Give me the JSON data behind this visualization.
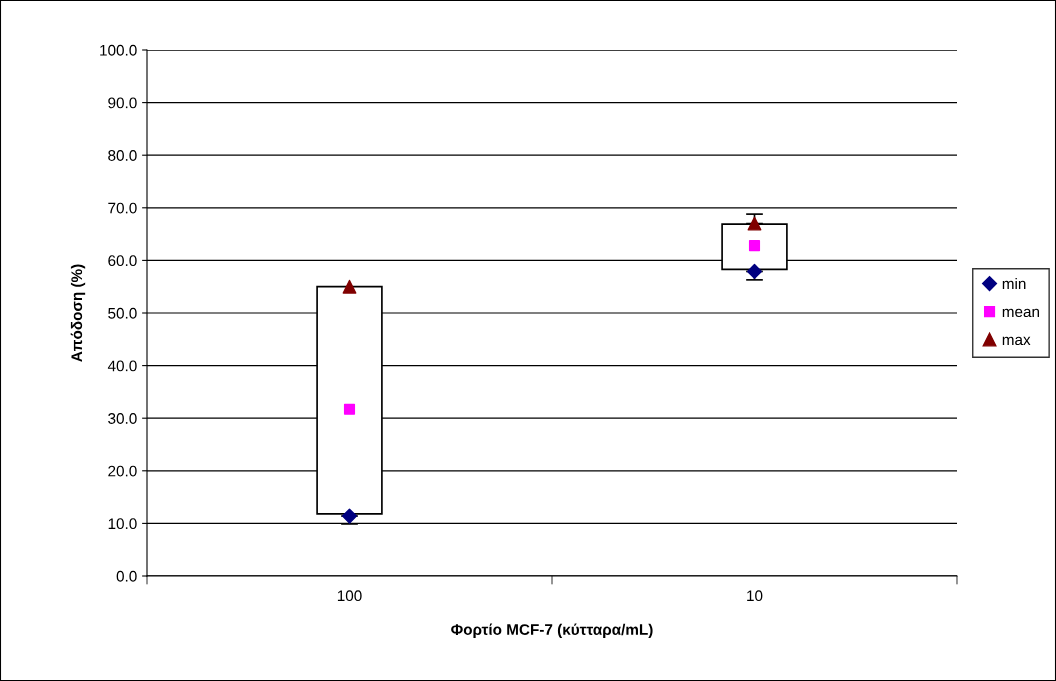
{
  "chart_data": {
    "type": "scatter",
    "xlabel": "Φορτίο MCF-7 (κύτταρα/mL)",
    "ylabel": "Απόδοση (%)",
    "categories": [
      "100",
      "10"
    ],
    "series": [
      {
        "type": "bar",
        "color": "#ffffff",
        "base": [
          11.8,
          58.3
        ],
        "values": [
          43.2,
          8.6
        ]
      },
      {
        "name": "min",
        "marker": "diamond",
        "color": "#000080",
        "values": [
          11.4,
          57.9
        ],
        "errors": [
          [
            9.9,
            11.4
          ],
          [
            56.3,
            57.9
          ]
        ]
      },
      {
        "name": "mean",
        "marker": "square",
        "color": "#ff00ff",
        "values": [
          31.7,
          62.8
        ]
      },
      {
        "name": "max",
        "marker": "triangle",
        "color": "#800000",
        "values": [
          55.0,
          67.0
        ],
        "errors": [
          null,
          [
            67.0,
            68.8
          ]
        ]
      }
    ],
    "ylim": [
      0,
      100
    ],
    "yticks": [
      {
        "value": 0,
        "label": "0.0"
      },
      {
        "value": 10,
        "label": "10.0"
      },
      {
        "value": 20,
        "label": "20.0"
      },
      {
        "value": 30,
        "label": "30.0"
      },
      {
        "value": 40,
        "label": "40.0"
      },
      {
        "value": 50,
        "label": "50.0"
      },
      {
        "value": 60,
        "label": "60.0"
      },
      {
        "value": 70,
        "label": "70.0"
      },
      {
        "value": 80,
        "label": "80.0"
      },
      {
        "value": 90,
        "label": "90.0"
      },
      {
        "value": 100,
        "label": "100.0"
      }
    ],
    "grid": "y",
    "legend": "right"
  }
}
